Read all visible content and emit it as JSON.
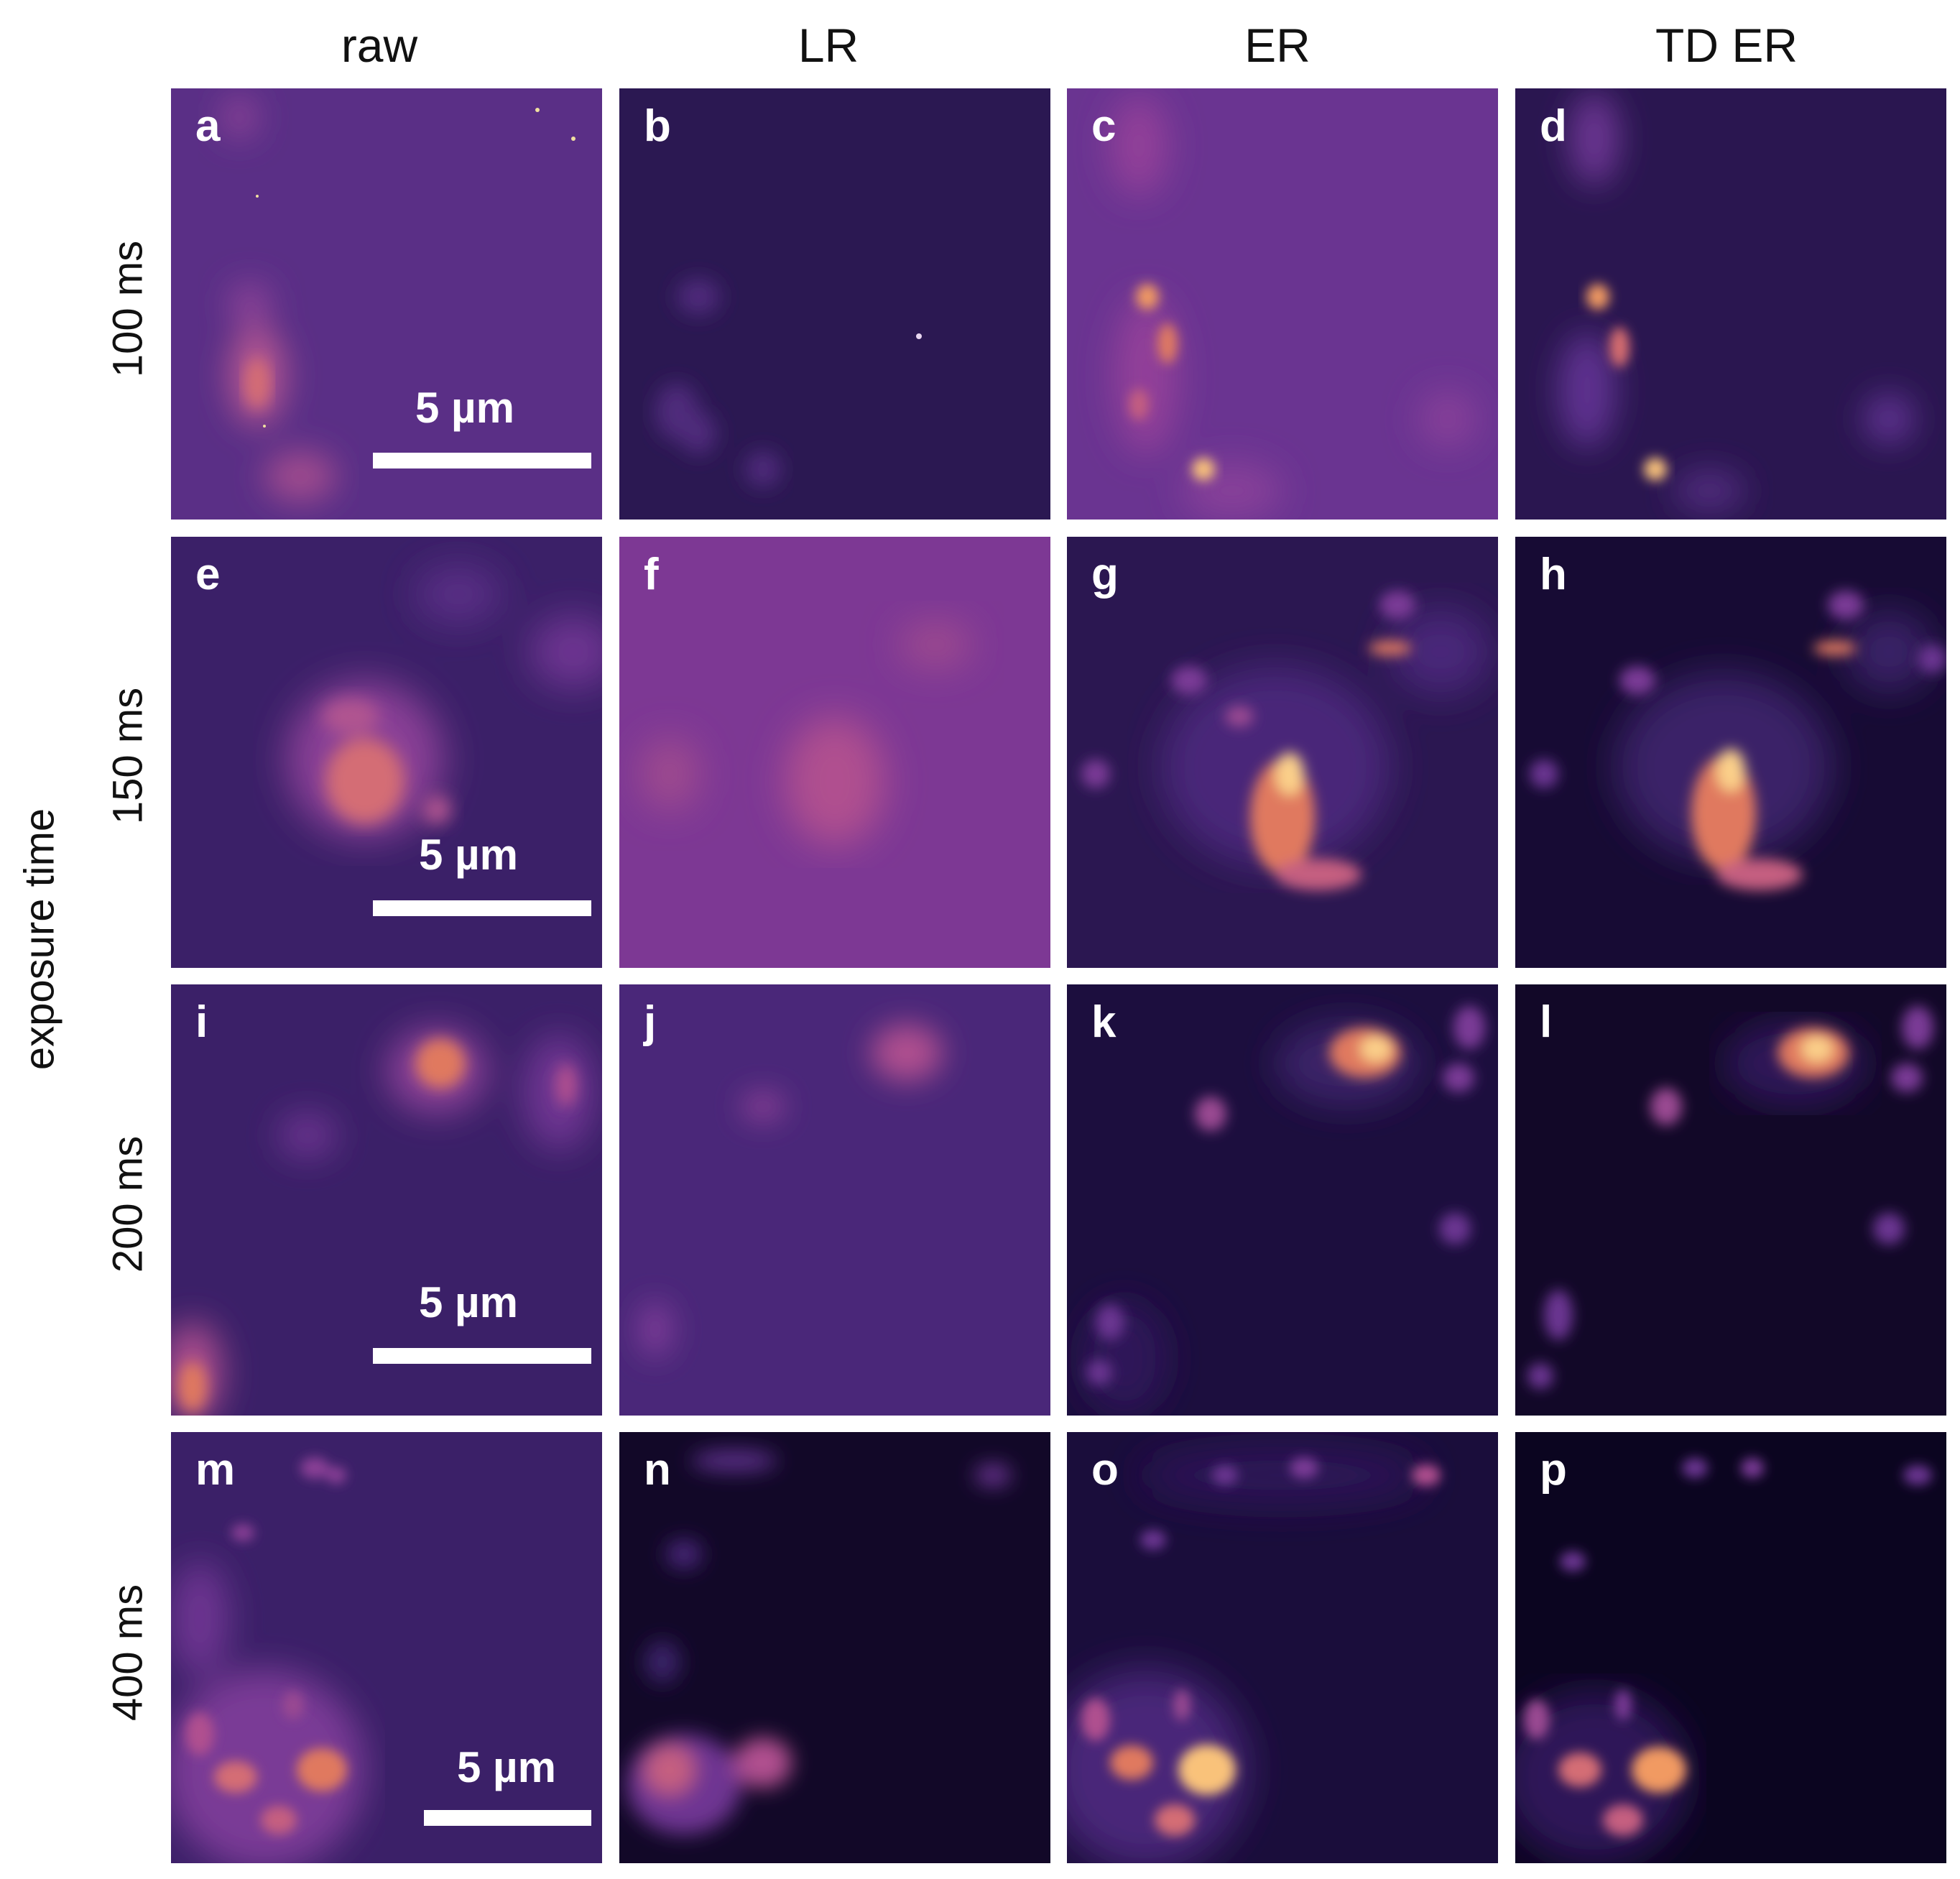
{
  "column_headers": [
    "raw",
    "LR",
    "ER",
    "TD ER"
  ],
  "axis_title": "exposure time",
  "rows": [
    {
      "exposure": "100 ms",
      "panels": [
        "a",
        "b",
        "c",
        "d"
      ],
      "scalebar": "5 µm"
    },
    {
      "exposure": "150 ms",
      "panels": [
        "e",
        "f",
        "g",
        "h"
      ],
      "scalebar": "5 µm"
    },
    {
      "exposure": "200 ms",
      "panels": [
        "i",
        "j",
        "k",
        "l"
      ],
      "scalebar": "5 µm"
    },
    {
      "exposure": "400 ms",
      "panels": [
        "m",
        "n",
        "o",
        "p"
      ],
      "scalebar": "5 µm"
    }
  ],
  "colormap": [
    "#0f0823",
    "#2b1650",
    "#4a2779",
    "#7a3a96",
    "#b04f8f",
    "#e0795f",
    "#fbd08a"
  ]
}
